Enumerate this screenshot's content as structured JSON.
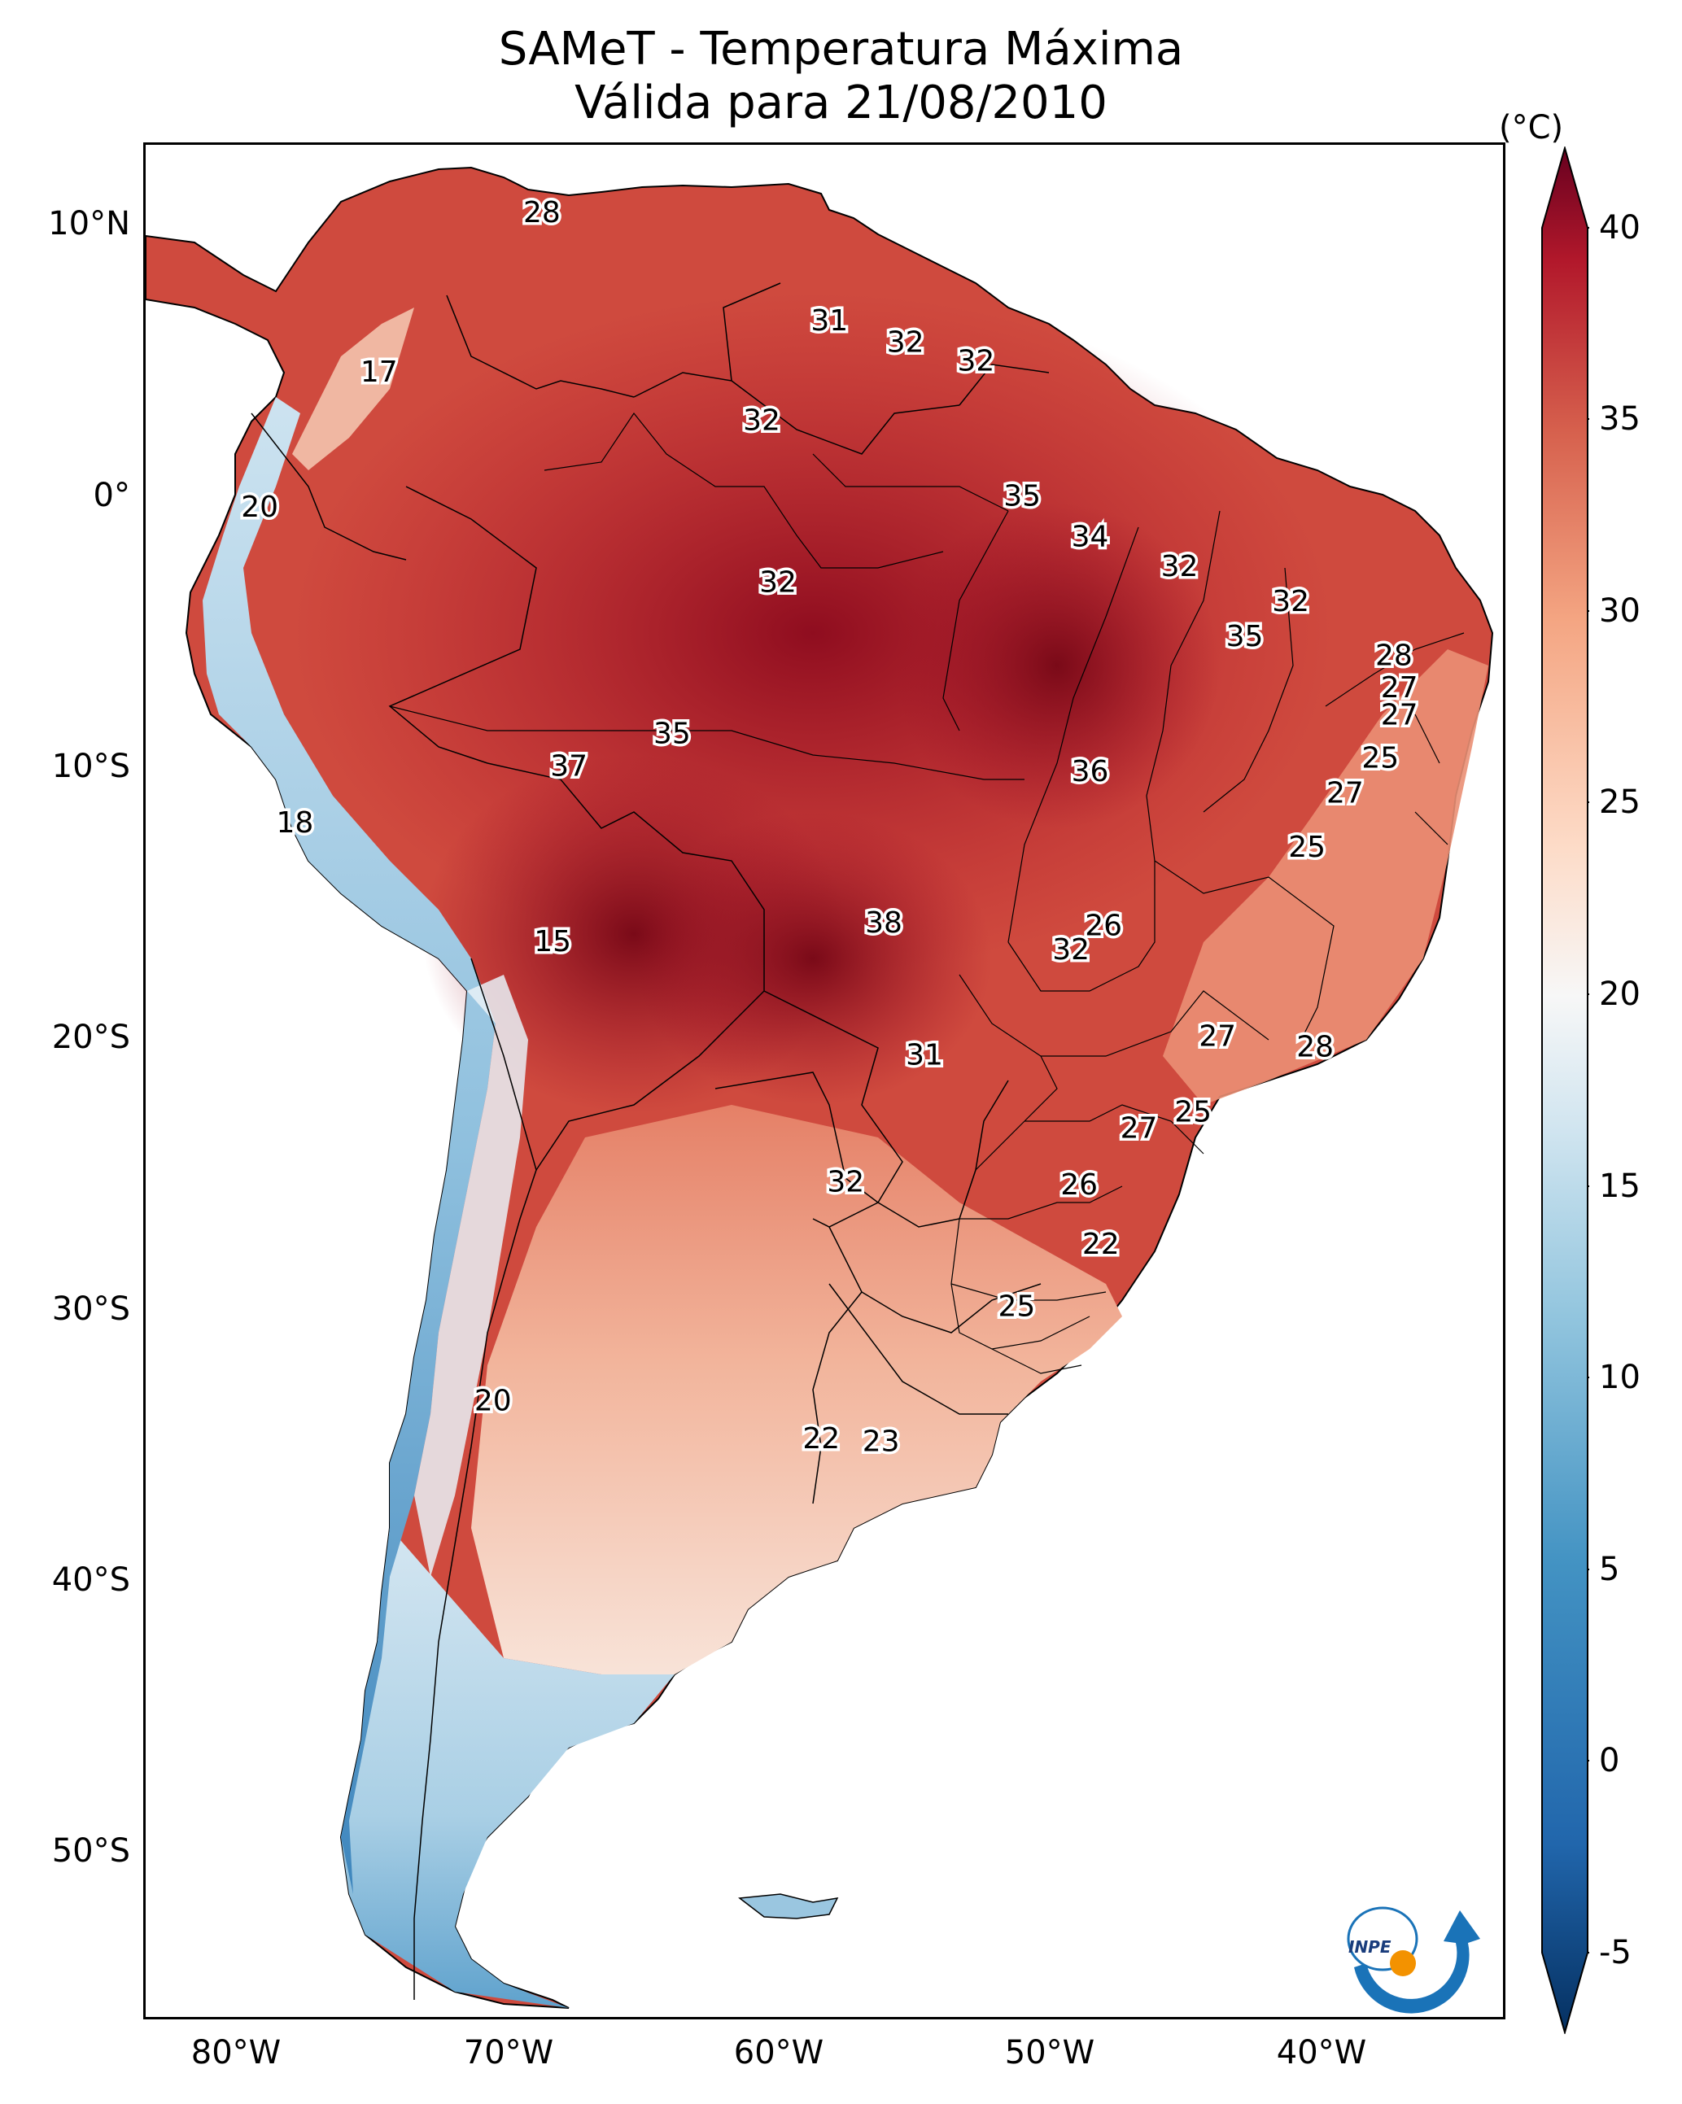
{
  "title": {
    "line1": "SAMeT - Temperatura Máxima",
    "line2": "Válida para 21/08/2010"
  },
  "axes": {
    "lat_ticks": [
      "10°N",
      "0°",
      "10°S",
      "20°S",
      "30°S",
      "40°S",
      "50°S"
    ],
    "lon_ticks": [
      "80°W",
      "70°W",
      "60°W",
      "50°W",
      "40°W"
    ]
  },
  "colorbar": {
    "unit": "(°C)",
    "ticks": [
      "40",
      "35",
      "30",
      "25",
      "20",
      "15",
      "10",
      "5",
      "0",
      "-5"
    ],
    "range": [
      -5,
      40
    ],
    "colormap": "RdBu_r",
    "extend": "both"
  },
  "logo_text": "INPE",
  "colors": {
    "hot": "#b2182b",
    "very_hot": "#8b0a1a",
    "warm": "#e0745a",
    "mild": "#f4b49a",
    "cool": "#f7f0ec",
    "cold": "#92c5de",
    "very_cold": "#2166ac",
    "logo_blue": "#1a73b8",
    "logo_orange": "#f39200"
  },
  "temperature_labels": [
    {
      "text": "28",
      "lon": -68.4,
      "lat": 10.5
    },
    {
      "text": "17",
      "lon": -74.4,
      "lat": 4.6
    },
    {
      "text": "20",
      "lon": -78.8,
      "lat": -0.4
    },
    {
      "text": "31",
      "lon": -57.8,
      "lat": 6.5
    },
    {
      "text": "32",
      "lon": -55.0,
      "lat": 5.7
    },
    {
      "text": "32",
      "lon": -52.4,
      "lat": 5.0
    },
    {
      "text": "32",
      "lon": -60.3,
      "lat": 2.8
    },
    {
      "text": "35",
      "lon": -50.7,
      "lat": 0.0
    },
    {
      "text": "34",
      "lon": -48.2,
      "lat": -1.5
    },
    {
      "text": "32",
      "lon": -44.9,
      "lat": -2.6
    },
    {
      "text": "32",
      "lon": -40.8,
      "lat": -3.9
    },
    {
      "text": "32",
      "lon": -59.7,
      "lat": -3.2
    },
    {
      "text": "35",
      "lon": -42.5,
      "lat": -5.2
    },
    {
      "text": "28",
      "lon": -37.0,
      "lat": -5.9
    },
    {
      "text": "27",
      "lon": -36.8,
      "lat": -7.1
    },
    {
      "text": "27",
      "lon": -36.8,
      "lat": -8.1
    },
    {
      "text": "25",
      "lon": -37.5,
      "lat": -9.7
    },
    {
      "text": "27",
      "lon": -38.8,
      "lat": -11.0
    },
    {
      "text": "25",
      "lon": -40.2,
      "lat": -13.0
    },
    {
      "text": "35",
      "lon": -63.6,
      "lat": -8.8
    },
    {
      "text": "37",
      "lon": -67.4,
      "lat": -10.0
    },
    {
      "text": "36",
      "lon": -48.2,
      "lat": -10.2
    },
    {
      "text": "18",
      "lon": -77.5,
      "lat": -12.1
    },
    {
      "text": "15",
      "lon": -68.0,
      "lat": -16.5
    },
    {
      "text": "38",
      "lon": -55.8,
      "lat": -15.8
    },
    {
      "text": "26",
      "lon": -47.7,
      "lat": -15.9
    },
    {
      "text": "32",
      "lon": -48.9,
      "lat": -16.8
    },
    {
      "text": "27",
      "lon": -43.5,
      "lat": -20.0
    },
    {
      "text": "28",
      "lon": -39.9,
      "lat": -20.4
    },
    {
      "text": "31",
      "lon": -54.3,
      "lat": -20.7
    },
    {
      "text": "25",
      "lon": -44.4,
      "lat": -22.8
    },
    {
      "text": "27",
      "lon": -46.4,
      "lat": -23.4
    },
    {
      "text": "32",
      "lon": -57.2,
      "lat": -25.4
    },
    {
      "text": "26",
      "lon": -48.6,
      "lat": -25.5
    },
    {
      "text": "22",
      "lon": -47.8,
      "lat": -27.7
    },
    {
      "text": "25",
      "lon": -50.9,
      "lat": -30.0
    },
    {
      "text": "20",
      "lon": -70.2,
      "lat": -33.5
    },
    {
      "text": "22",
      "lon": -58.1,
      "lat": -34.9
    },
    {
      "text": "23",
      "lon": -55.9,
      "lat": -35.0
    }
  ]
}
